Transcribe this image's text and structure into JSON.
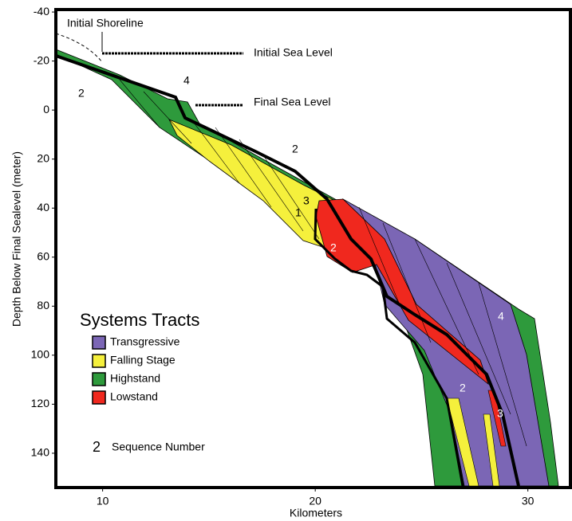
{
  "chart_data": {
    "type": "cross-section",
    "x_label": "Kilometers",
    "y_label": "Depth Below Final Sealevel (meter)",
    "xlim": [
      7.8,
      32
    ],
    "xticks": [
      10,
      20,
      30
    ],
    "ylim": [
      -41,
      154
    ],
    "yticks": [
      -40,
      -20,
      0,
      20,
      40,
      60,
      80,
      100,
      120,
      140
    ],
    "annotations": [
      "Initial Shoreline",
      "Initial Sea Level",
      "Final Sea Level"
    ],
    "sequence_labels": [
      "2",
      "4",
      "2",
      "3",
      "1",
      "2",
      "4",
      "2",
      "3"
    ],
    "legend": {
      "title": "Systems Tracts",
      "items": [
        {
          "name": "Transgressive",
          "color": "#7b66b5"
        },
        {
          "name": "Falling Stage",
          "color": "#f5f03c"
        },
        {
          "name": "Highstand",
          "color": "#2e9a3c"
        },
        {
          "name": "Lowstand",
          "color": "#f0281e"
        }
      ],
      "sequence_symbol": "2",
      "sequence_text": "Sequence Number"
    }
  }
}
